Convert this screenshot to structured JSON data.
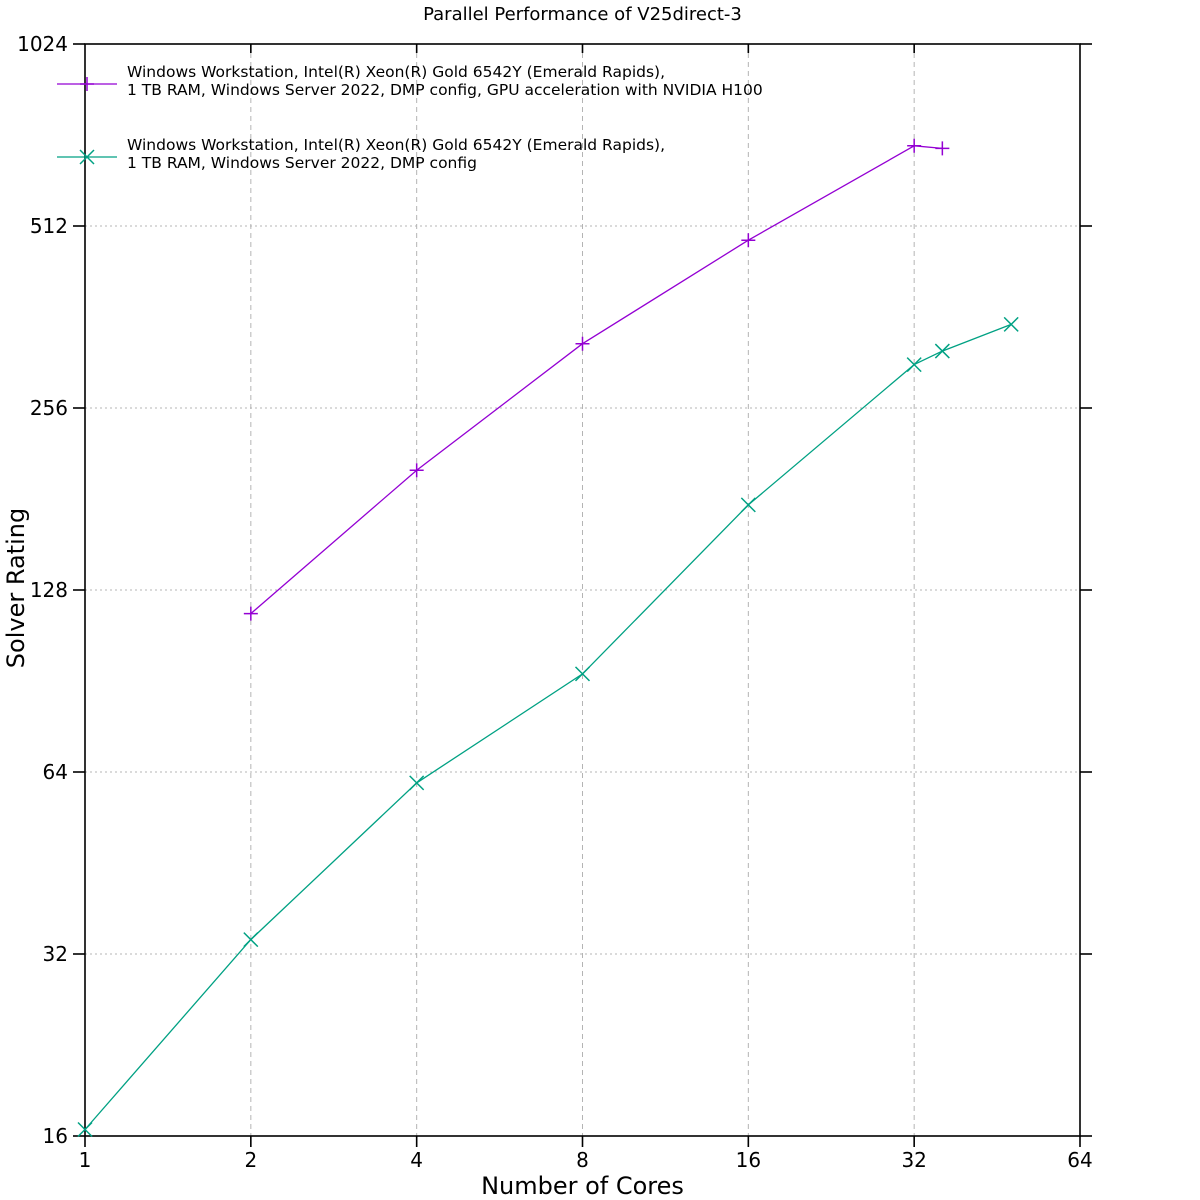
{
  "chart_data": {
    "type": "line",
    "title": "Parallel Performance of V25direct-3",
    "xlabel": "Number of Cores",
    "ylabel": "Solver Rating",
    "x_scale": "log2",
    "y_scale": "log2",
    "xlim": [
      1,
      64
    ],
    "ylim": [
      16,
      1024
    ],
    "x_ticks": [
      1,
      2,
      4,
      8,
      16,
      32,
      64
    ],
    "y_ticks": [
      16,
      32,
      64,
      128,
      256,
      512,
      1024
    ],
    "grid": {
      "vertical": [
        2,
        4,
        8,
        16,
        32
      ],
      "horizontal": [
        32,
        64,
        128,
        256,
        512
      ]
    },
    "grid_on": true,
    "legend_position": "inside-top-left",
    "background_color": "#ffffff",
    "axis_color": "#000000",
    "grid_color": "#b4b4b4",
    "series": [
      {
        "name": "gpu",
        "label_lines": [
          "Windows Workstation, Intel(R) Xeon(R) Gold 6542Y (Emerald Rapids),",
          "1 TB RAM, Windows Server 2022, DMP config, GPU acceleration with NVIDIA H100"
        ],
        "color": "#9400d3",
        "marker": "plus",
        "points": [
          {
            "cores": 2,
            "rating": 117
          },
          {
            "cores": 4,
            "rating": 202
          },
          {
            "cores": 8,
            "rating": 327
          },
          {
            "cores": 16,
            "rating": 485
          },
          {
            "cores": 32,
            "rating": 695
          },
          {
            "cores": 36,
            "rating": 688
          }
        ]
      },
      {
        "name": "cpu",
        "label_lines": [
          "Windows Workstation, Intel(R) Xeon(R) Gold 6542Y (Emerald Rapids),",
          "1 TB RAM, Windows Server 2022, DMP config"
        ],
        "color": "#00a183",
        "marker": "cross",
        "points": [
          {
            "cores": 1,
            "rating": 16.4
          },
          {
            "cores": 2,
            "rating": 33.8
          },
          {
            "cores": 4,
            "rating": 61.4
          },
          {
            "cores": 8,
            "rating": 93
          },
          {
            "cores": 16,
            "rating": 177
          },
          {
            "cores": 32,
            "rating": 302
          },
          {
            "cores": 36,
            "rating": 318
          },
          {
            "cores": 48,
            "rating": 352
          }
        ]
      }
    ]
  }
}
